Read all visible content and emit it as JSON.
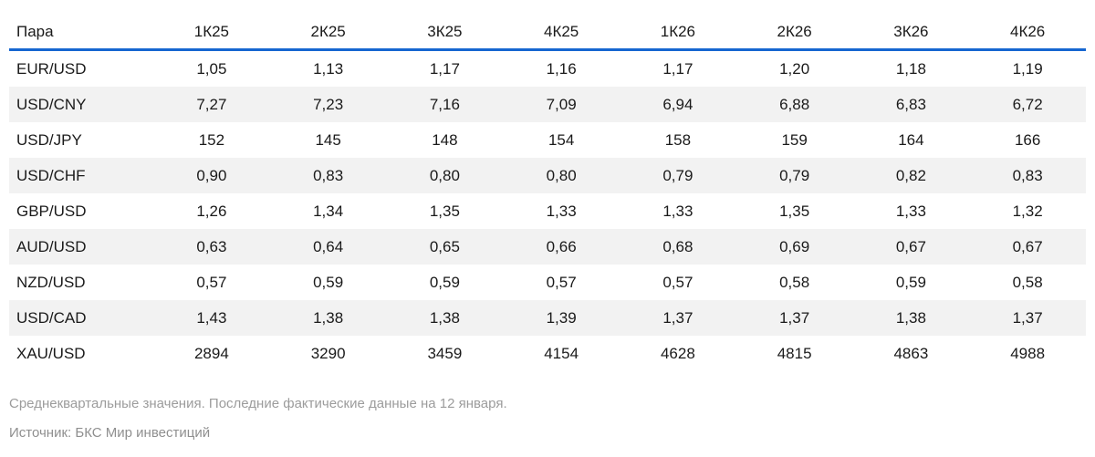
{
  "colors": {
    "accent_blue": "#1666d0",
    "zebra_row_bg": "#f2f2f2",
    "cell_text": "#1a1a1a",
    "note_text": "#9c9c9c"
  },
  "chart_data": {
    "type": "table",
    "columns": [
      "Пара",
      "1К25",
      "2К25",
      "3К25",
      "4К25",
      "1К26",
      "2К26",
      "3К26",
      "4К26"
    ],
    "rows": [
      {
        "pair": "EUR/USD",
        "values": [
          "1,05",
          "1,13",
          "1,17",
          "1,16",
          "1,17",
          "1,20",
          "1,18",
          "1,19"
        ]
      },
      {
        "pair": "USD/CNY",
        "values": [
          "7,27",
          "7,23",
          "7,16",
          "7,09",
          "6,94",
          "6,88",
          "6,83",
          "6,72"
        ]
      },
      {
        "pair": "USD/JPY",
        "values": [
          "152",
          "145",
          "148",
          "154",
          "158",
          "159",
          "164",
          "166"
        ]
      },
      {
        "pair": "USD/CHF",
        "values": [
          "0,90",
          "0,83",
          "0,80",
          "0,80",
          "0,79",
          "0,79",
          "0,82",
          "0,83"
        ]
      },
      {
        "pair": "GBP/USD",
        "values": [
          "1,26",
          "1,34",
          "1,35",
          "1,33",
          "1,33",
          "1,35",
          "1,33",
          "1,32"
        ]
      },
      {
        "pair": "AUD/USD",
        "values": [
          "0,63",
          "0,64",
          "0,65",
          "0,66",
          "0,68",
          "0,69",
          "0,67",
          "0,67"
        ]
      },
      {
        "pair": "NZD/USD",
        "values": [
          "0,57",
          "0,59",
          "0,59",
          "0,57",
          "0,57",
          "0,58",
          "0,59",
          "0,58"
        ]
      },
      {
        "pair": "USD/CAD",
        "values": [
          "1,43",
          "1,38",
          "1,38",
          "1,39",
          "1,37",
          "1,37",
          "1,38",
          "1,37"
        ]
      },
      {
        "pair": "XAU/USD",
        "values": [
          "2894",
          "3290",
          "3459",
          "4154",
          "4628",
          "4815",
          "4863",
          "4988"
        ]
      }
    ],
    "footnote": "Среднеквартальные значения. Последние фактические данные на 12 января.",
    "source": "Источник: БКС Мир инвестиций"
  }
}
